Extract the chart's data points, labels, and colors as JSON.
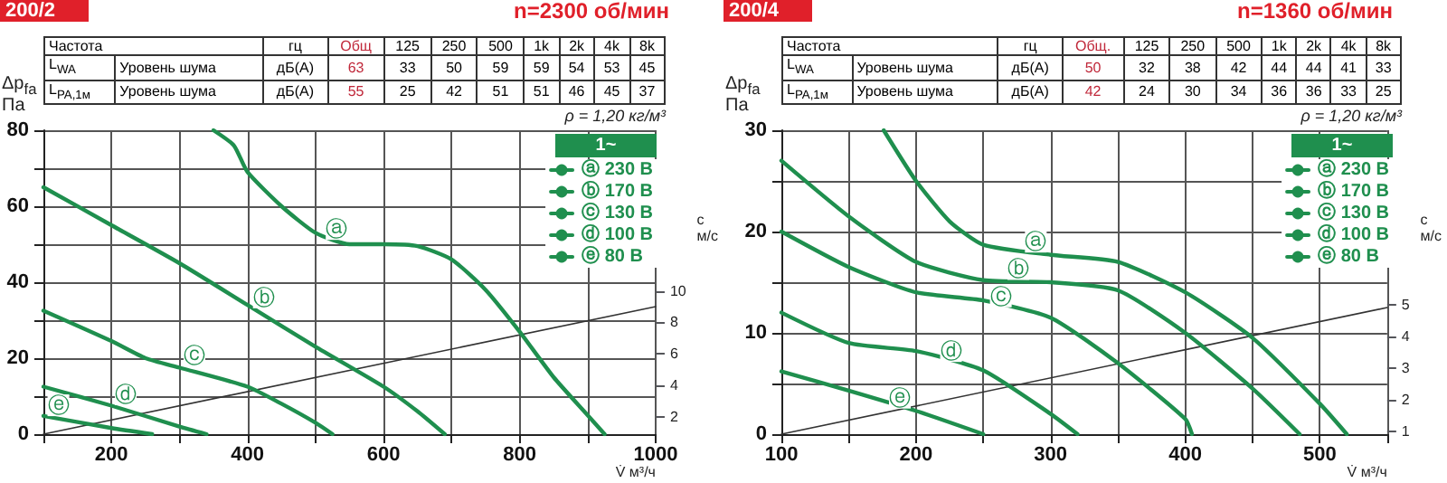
{
  "chart_data": [
    {
      "type": "line",
      "title": "200/2",
      "subtitle": "n=2300 об/мин",
      "xlabel": "V̇ м³/ч",
      "ylabel": "Δp$_{fa}$\nПа",
      "y2label": "c\nм/с",
      "legend_title": "1~",
      "legend": "top right",
      "grid": true,
      "marker": "none",
      "line_style": "solid",
      "xlim": [
        100,
        1000
      ],
      "xticks": [
        {
          "value": 100,
          "label": null
        },
        200,
        {
          "value": 300,
          "label": null
        },
        400,
        {
          "value": 500,
          "label": null
        },
        600,
        {
          "value": 700,
          "label": null
        },
        800,
        {
          "value": 900,
          "label": null
        },
        1000
      ],
      "ylim": [
        0,
        80
      ],
      "yticks": [
        0,
        {
          "value": 10,
          "label": null
        },
        20,
        {
          "value": 30,
          "label": null
        },
        40,
        {
          "value": 50,
          "label": null
        },
        60,
        {
          "value": 70,
          "label": null
        },
        80
      ],
      "y2lim": [
        0.9,
        20.2
      ],
      "y2ticks": [
        2,
        4,
        6,
        8,
        10
      ],
      "series": [
        {
          "name": "ⓐ 230 В",
          "color": "#1f8f4e",
          "x": [
            350,
            380,
            400,
            450,
            500,
            550,
            600,
            650,
            700,
            750,
            800,
            850,
            900,
            925
          ],
          "values": [
            80,
            76,
            69,
            60,
            53,
            50,
            50,
            49.5,
            46,
            38,
            27,
            15,
            5,
            0
          ]
        },
        {
          "name": "ⓑ 170 В",
          "color": "#1f8f4e",
          "x": [
            100,
            200,
            300,
            400,
            500,
            600,
            650,
            690
          ],
          "values": [
            65,
            55,
            45,
            34,
            23,
            12.5,
            6,
            0
          ]
        },
        {
          "name": "ⓒ 130 В",
          "color": "#1f8f4e",
          "x": [
            100,
            200,
            250,
            300,
            400,
            450,
            500,
            525
          ],
          "values": [
            32.5,
            24.5,
            20,
            17.5,
            12.5,
            8,
            3,
            0
          ]
        },
        {
          "name": "ⓓ 100 В",
          "color": "#1f8f4e",
          "x": [
            100,
            200,
            300,
            340
          ],
          "values": [
            12.5,
            7.5,
            2,
            0
          ]
        },
        {
          "name": "ⓔ 80 В",
          "color": "#1f8f4e",
          "x": [
            100,
            200,
            260
          ],
          "values": [
            4.8,
            1.6,
            0
          ]
        },
        {
          "color": "#333333",
          "axis": "y2",
          "x": [
            100,
            1000
          ],
          "values": [
            0.9,
            9
          ]
        }
      ],
      "annotations": [
        "Частота",
        "гц",
        "Общ",
        "125",
        "250",
        "500",
        "1k",
        "2k",
        "4k",
        "8k",
        "L$_{WA}$",
        "Уровень шума",
        "дБ(А)",
        "63",
        "33",
        "50",
        "59",
        "59",
        "54",
        "53",
        "45",
        "L$_{PA,1м}$",
        "Уровень шума",
        "дБ(А)",
        "55",
        "25",
        "42",
        "51",
        "51",
        "46",
        "45",
        "37",
        "ρ = 1,20 кг/м³",
        {
          "text": "ⓐ",
          "x": 531,
          "y": 54
        },
        {
          "text": "ⓑ",
          "x": 424,
          "y": 36
        },
        {
          "text": "ⓒ",
          "x": 322,
          "y": 20.8
        },
        {
          "text": "ⓓ",
          "x": 221,
          "y": 10.5
        },
        {
          "text": "ⓔ",
          "x": 122,
          "y": 7.6
        }
      ]
    },
    {
      "type": "line",
      "title": "200/4",
      "subtitle": "n=1360 об/мин",
      "xlabel": "V̇ м³/ч",
      "ylabel": "Δp$_{fa}$\nПа",
      "y2label": "c\nм/с",
      "legend_title": "1~",
      "legend": "top right",
      "grid": true,
      "marker": "none",
      "line_style": "solid",
      "xlim": [
        100,
        550
      ],
      "xticks": [
        100,
        {
          "value": 150,
          "label": null
        },
        200,
        {
          "value": 250,
          "label": null
        },
        300,
        {
          "value": 350,
          "label": null
        },
        400,
        {
          "value": 450,
          "label": null
        },
        500,
        {
          "value": 550,
          "label": null
        }
      ],
      "ylim": [
        0,
        30
      ],
      "yticks": [
        0,
        {
          "value": 5,
          "label": null
        },
        10,
        {
          "value": 15,
          "label": null
        },
        20,
        {
          "value": 25,
          "label": null
        },
        30
      ],
      "y2lim": [
        0.9,
        10.5
      ],
      "y2ticks": [
        1,
        2,
        3,
        4,
        5
      ],
      "series": [
        {
          "name": "ⓐ 230 В",
          "color": "#1f8f4e",
          "x": [
            176,
            200,
            225,
            250,
            300,
            350,
            400,
            450,
            500,
            520
          ],
          "values": [
            30,
            25,
            21,
            18.7,
            17.7,
            17,
            14,
            9.5,
            3,
            0
          ]
        },
        {
          "name": "ⓑ 170 В",
          "color": "#1f8f4e",
          "x": [
            100,
            150,
            200,
            250,
            300,
            350,
            400,
            450,
            485
          ],
          "values": [
            27,
            21.5,
            17,
            15.2,
            15,
            14.2,
            10,
            4.5,
            0
          ]
        },
        {
          "name": "ⓒ 130 В",
          "color": "#1f8f4e",
          "x": [
            100,
            150,
            200,
            250,
            300,
            350,
            400,
            405
          ],
          "values": [
            20,
            16.5,
            14,
            13.2,
            11.5,
            7,
            1.5,
            0
          ]
        },
        {
          "name": "ⓓ 100 В",
          "color": "#1f8f4e",
          "x": [
            100,
            150,
            200,
            250,
            300,
            320
          ],
          "values": [
            12,
            9,
            8.2,
            6.3,
            2,
            0
          ]
        },
        {
          "name": "ⓔ 80 В",
          "color": "#1f8f4e",
          "x": [
            100,
            150,
            200,
            250
          ],
          "values": [
            6.2,
            4.3,
            2.3,
            0
          ]
        },
        {
          "color": "#333333",
          "axis": "y2",
          "x": [
            100,
            550
          ],
          "values": [
            0.9,
            4.9
          ]
        }
      ],
      "annotations": [
        "Частота",
        "гц",
        "Общ.",
        "125",
        "250",
        "500",
        "1k",
        "2k",
        "4k",
        "8k",
        "L$_{WA}$",
        "Уровень шума",
        "дБ(А)",
        "50",
        "32",
        "38",
        "42",
        "44",
        "44",
        "41",
        "33",
        "L$_{PA,1м}$",
        "Уровень шума",
        "дБ(А)",
        "42",
        "24",
        "30",
        "34",
        "36",
        "36",
        "33",
        "25",
        "ρ = 1,20 кг/м³",
        {
          "text": "ⓐ",
          "x": 289,
          "y": 19
        },
        {
          "text": "ⓑ",
          "x": 276,
          "y": 16.3
        },
        {
          "text": "ⓒ",
          "x": 263,
          "y": 13.6
        },
        {
          "text": "ⓓ",
          "x": 226,
          "y": 8.2
        },
        {
          "text": "ⓔ",
          "x": 188,
          "y": 3.6
        }
      ]
    }
  ]
}
